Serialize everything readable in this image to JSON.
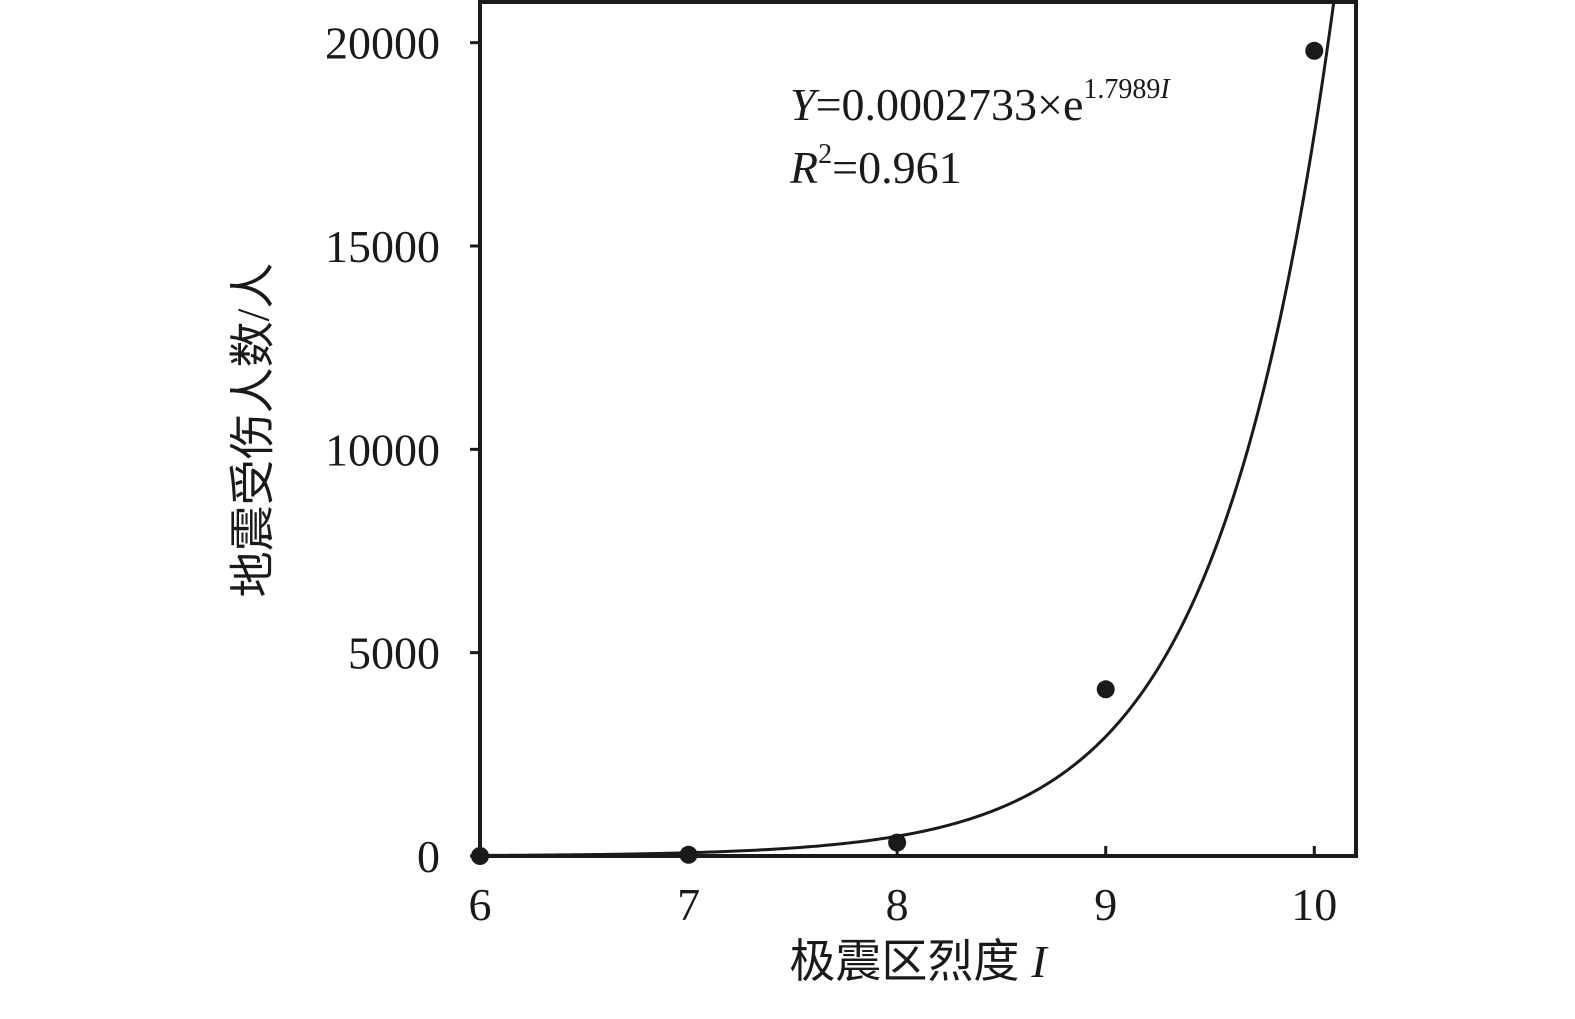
{
  "chart_data": {
    "type": "scatter",
    "x_label": "极震区烈度",
    "y_label": "地震受伤人数/人",
    "x": [
      6,
      7,
      8,
      9,
      10
    ],
    "values": [
      0,
      30,
      330,
      4100,
      19800
    ],
    "color": "#1a1a1a",
    "xlim": [
      6,
      10.2
    ],
    "xticks": [
      6,
      7,
      8,
      9,
      10
    ],
    "ylim": [
      0,
      21000
    ],
    "yticks": [
      0,
      5000,
      10000,
      15000,
      20000
    ],
    "fit": {
      "y_symbol": "Y",
      "equals": "=",
      "a": 0.0002733,
      "times_e": "×e",
      "b": 1.7989,
      "x_symbol": "I",
      "r_symbol": "R",
      "r_power": "2",
      "r2": 0.961
    }
  }
}
